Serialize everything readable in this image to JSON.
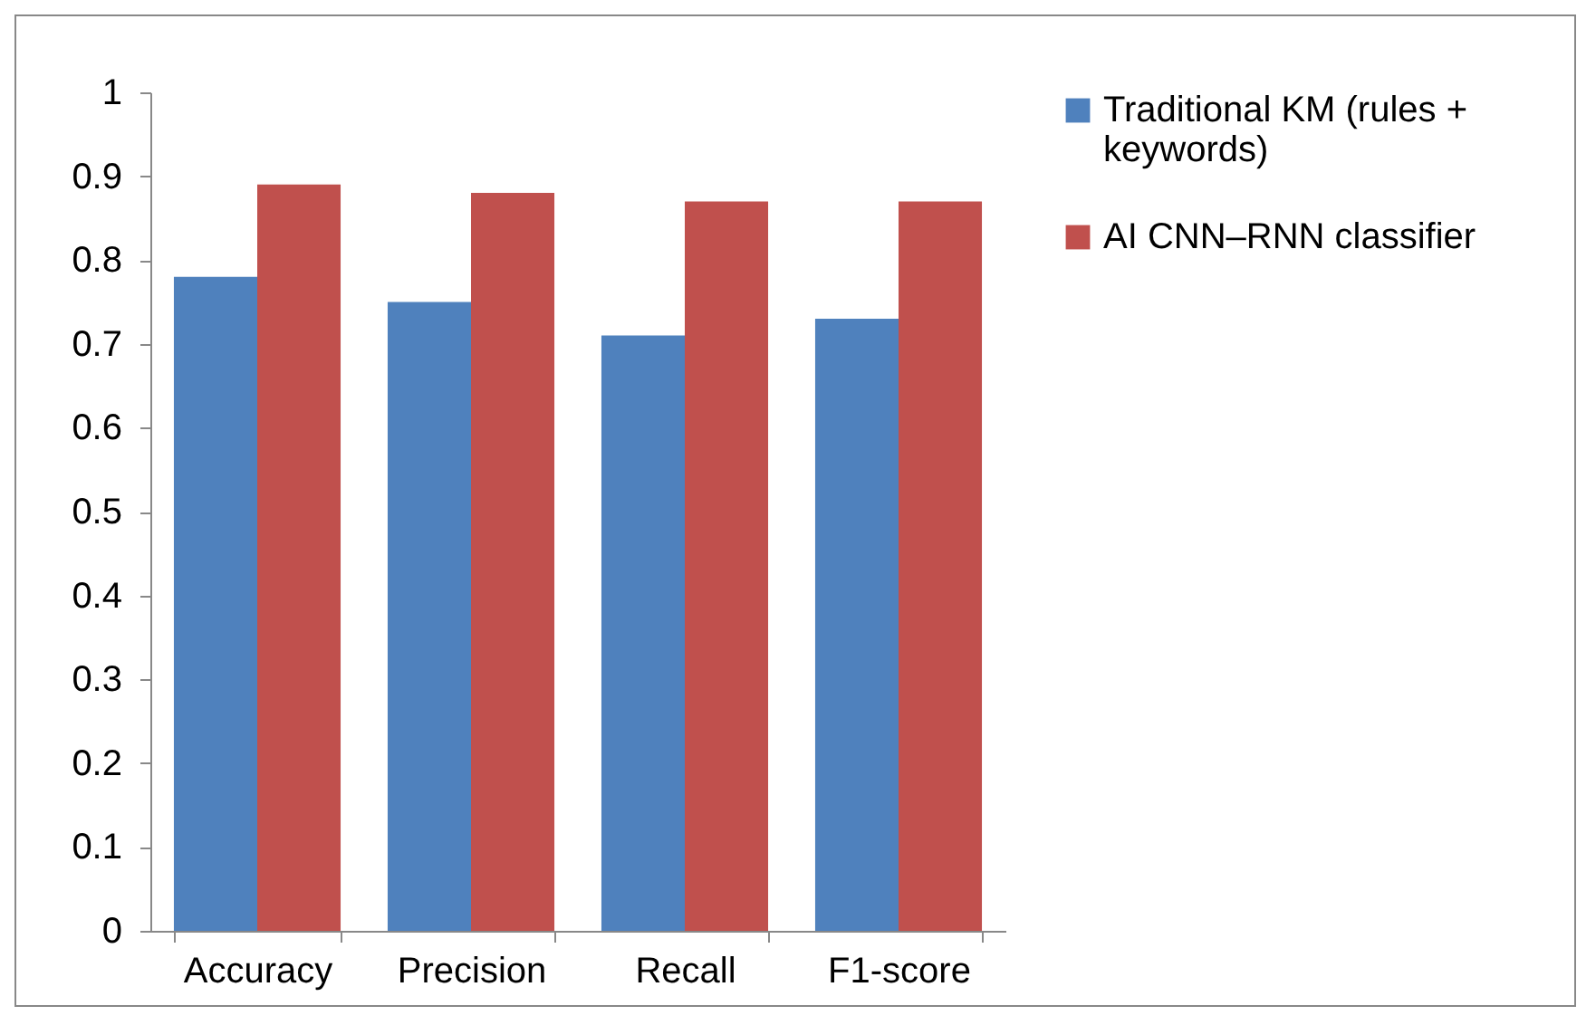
{
  "chart_data": {
    "type": "bar",
    "categories": [
      "Accuracy",
      "Precision",
      "Recall",
      "F1-score"
    ],
    "series": [
      {
        "name": "Traditional KM (rules + keywords)",
        "color": "#4f81bd",
        "values": [
          0.78,
          0.75,
          0.71,
          0.73
        ]
      },
      {
        "name": "AI CNN–RNN classifier",
        "color": "#c0504d",
        "values": [
          0.89,
          0.88,
          0.87,
          0.87
        ]
      }
    ],
    "ylim": [
      0,
      1
    ],
    "yticks": [
      0,
      0.1,
      0.2,
      0.3,
      0.4,
      0.5,
      0.6,
      0.7,
      0.8,
      0.9,
      1
    ],
    "grid": false,
    "legend": "right"
  }
}
